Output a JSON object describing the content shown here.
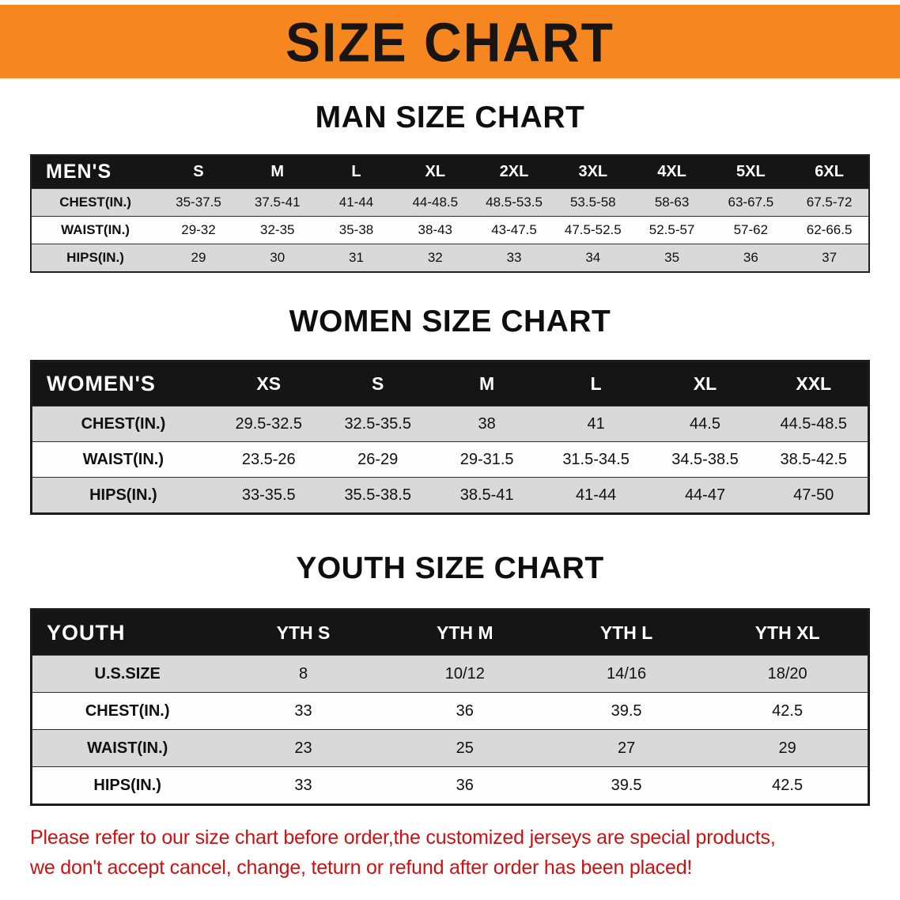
{
  "banner": {
    "title": "SIZE CHART"
  },
  "chart_data": [
    {
      "type": "table",
      "title": "MAN SIZE CHART",
      "columns": [
        "MEN'S",
        "S",
        "M",
        "L",
        "XL",
        "2XL",
        "3XL",
        "4XL",
        "5XL",
        "6XL"
      ],
      "rows": [
        [
          "CHEST(IN.)",
          "35-37.5",
          "37.5-41",
          "41-44",
          "44-48.5",
          "48.5-53.5",
          "53.5-58",
          "58-63",
          "63-67.5",
          "67.5-72"
        ],
        [
          "WAIST(IN.)",
          "29-32",
          "32-35",
          "35-38",
          "38-43",
          "43-47.5",
          "47.5-52.5",
          "52.5-57",
          "57-62",
          "62-66.5"
        ],
        [
          "HIPS(IN.)",
          "29",
          "30",
          "31",
          "32",
          "33",
          "34",
          "35",
          "36",
          "37"
        ]
      ]
    },
    {
      "type": "table",
      "title": "WOMEN SIZE CHART",
      "columns": [
        "WOMEN'S",
        "XS",
        "S",
        "M",
        "L",
        "XL",
        "XXL"
      ],
      "rows": [
        [
          "CHEST(IN.)",
          "29.5-32.5",
          "32.5-35.5",
          "38",
          "41",
          "44.5",
          "44.5-48.5"
        ],
        [
          "WAIST(IN.)",
          "23.5-26",
          "26-29",
          "29-31.5",
          "31.5-34.5",
          "34.5-38.5",
          "38.5-42.5"
        ],
        [
          "HIPS(IN.)",
          "33-35.5",
          "35.5-38.5",
          "38.5-41",
          "41-44",
          "44-47",
          "47-50"
        ]
      ]
    },
    {
      "type": "table",
      "title": "YOUTH SIZE CHART",
      "columns": [
        "YOUTH",
        "YTH S",
        "YTH M",
        "YTH L",
        "YTH XL"
      ],
      "rows": [
        [
          "U.S.SIZE",
          "8",
          "10/12",
          "14/16",
          "18/20"
        ],
        [
          "CHEST(IN.)",
          "33",
          "36",
          "39.5",
          "42.5"
        ],
        [
          "WAIST(IN.)",
          "23",
          "25",
          "27",
          "29"
        ],
        [
          "HIPS(IN.)",
          "33",
          "36",
          "39.5",
          "42.5"
        ]
      ]
    }
  ],
  "disclaimer": {
    "lines": [
      "Please refer to our size chart before order,the customized jerseys are special products,",
      "we don't accept cancel, change, teturn or refund after order has been placed!"
    ]
  },
  "colors": {
    "banner_bg": "#F6861F",
    "header_bar_bg": "#151515",
    "header_bar_text": "#FFFFFF",
    "row_gray": "#D9D9D9",
    "row_white": "#FDFDFD",
    "heading_text": "#0E0E0E",
    "disclaimer_text": "#CB1111"
  }
}
